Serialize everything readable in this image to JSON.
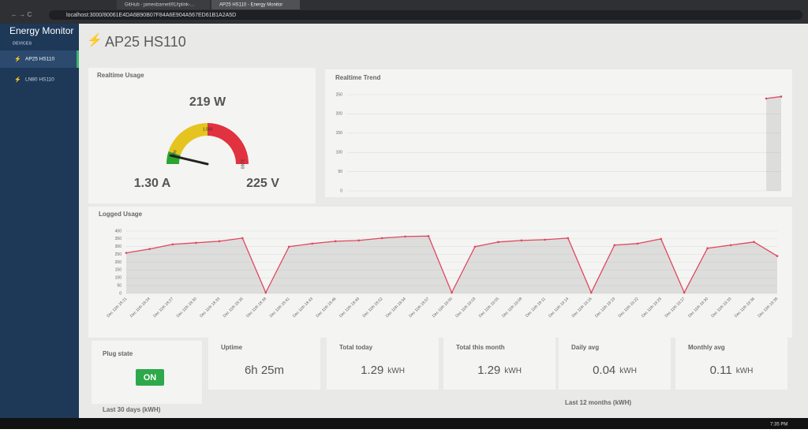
{
  "browser": {
    "tabs": [
      "GitHub - jamesbarnett91/tplink-...",
      "AP25 HS110 - Energy Monitor"
    ],
    "url": "localhost:3000/80061E4DA6B90B07F84A6E904A567ED61B1A2A5D"
  },
  "sidebar": {
    "title": "Energy Monitor",
    "section": "DEVICES",
    "devices": [
      "AP25 HS110",
      "LN80 HS110"
    ]
  },
  "header": {
    "title": "AP25 HS110"
  },
  "realtime_usage": {
    "title": "Realtime Usage",
    "gauge": {
      "min": 0,
      "max": 3000,
      "value": 219,
      "value_label": "219 W",
      "bands": [
        {
          "to": 300,
          "color": "#2aa52e"
        },
        {
          "to": 1500,
          "color": "#e6c41f"
        },
        {
          "to": 3000,
          "color": "#e0323f"
        }
      ],
      "ticks": [
        {
          "value": 300,
          "label": "300"
        },
        {
          "value": 1500,
          "label": "1,500"
        },
        {
          "value": 3000,
          "label": "3,000"
        }
      ]
    },
    "current": "1.30 A",
    "voltage": "225 V"
  },
  "chart_data": [
    {
      "type": "line",
      "title": "Realtime Trend",
      "values": [
        null,
        null,
        null,
        null,
        null,
        null,
        null,
        null,
        null,
        null,
        null,
        null,
        null,
        null,
        null,
        null,
        null,
        null,
        null,
        null,
        null,
        null,
        null,
        null,
        null,
        null,
        null,
        null,
        240,
        245
      ],
      "color": "#e0475d",
      "ylim": [
        0,
        250
      ],
      "yticks": [
        0,
        50,
        100,
        150,
        200,
        250
      ],
      "grid": true
    },
    {
      "type": "line",
      "title": "Logged Usage",
      "categories": [
        "Dec 11th 18:21",
        "Dec 11th 18:24",
        "Dec 11th 18:27",
        "Dec 11th 18:30",
        "Dec 11th 18:33",
        "Dec 11th 18:35",
        "Dec 11th 18:38",
        "Dec 11th 18:41",
        "Dec 11th 18:43",
        "Dec 11th 18:46",
        "Dec 11th 18:49",
        "Dec 11th 18:52",
        "Dec 11th 18:54",
        "Dec 11th 18:57",
        "Dec 11th 19:00",
        "Dec 11th 19:03",
        "Dec 11th 19:05",
        "Dec 11th 19:08",
        "Dec 11th 19:11",
        "Dec 11th 19:14",
        "Dec 11th 19:16",
        "Dec 11th 19:19",
        "Dec 11th 19:22",
        "Dec 11th 19:25",
        "Dec 11th 19:27",
        "Dec 11th 19:30",
        "Dec 11th 19:33",
        "Dec 11th 19:36",
        "Dec 11th 19:38"
      ],
      "values": [
        260,
        285,
        315,
        325,
        335,
        355,
        5,
        300,
        320,
        335,
        340,
        355,
        365,
        368,
        5,
        300,
        330,
        340,
        345,
        355,
        5,
        310,
        320,
        350,
        5,
        290,
        310,
        330,
        240
      ],
      "color": "#e0475d",
      "ylim": [
        0,
        400
      ],
      "yticks": [
        0,
        50,
        100,
        150,
        200,
        250,
        300,
        350,
        400
      ],
      "grid": true
    }
  ],
  "plug_state": {
    "label": "Plug state",
    "value": "ON"
  },
  "stats": [
    {
      "label": "Uptime",
      "value": "6h 25m"
    },
    {
      "label": "Total today",
      "value": "1.29",
      "unit": "kWH"
    },
    {
      "label": "Total this month",
      "value": "1.29",
      "unit": "kWH"
    },
    {
      "label": "Daily avg",
      "value": "0.04",
      "unit": "kWH"
    },
    {
      "label": "Monthly avg",
      "value": "0.11",
      "unit": "kWH"
    }
  ],
  "sections": [
    "Last 30 days (kWH)",
    "Last 12 months (kWH)"
  ],
  "taskbar": {
    "time": "7:35 PM"
  }
}
